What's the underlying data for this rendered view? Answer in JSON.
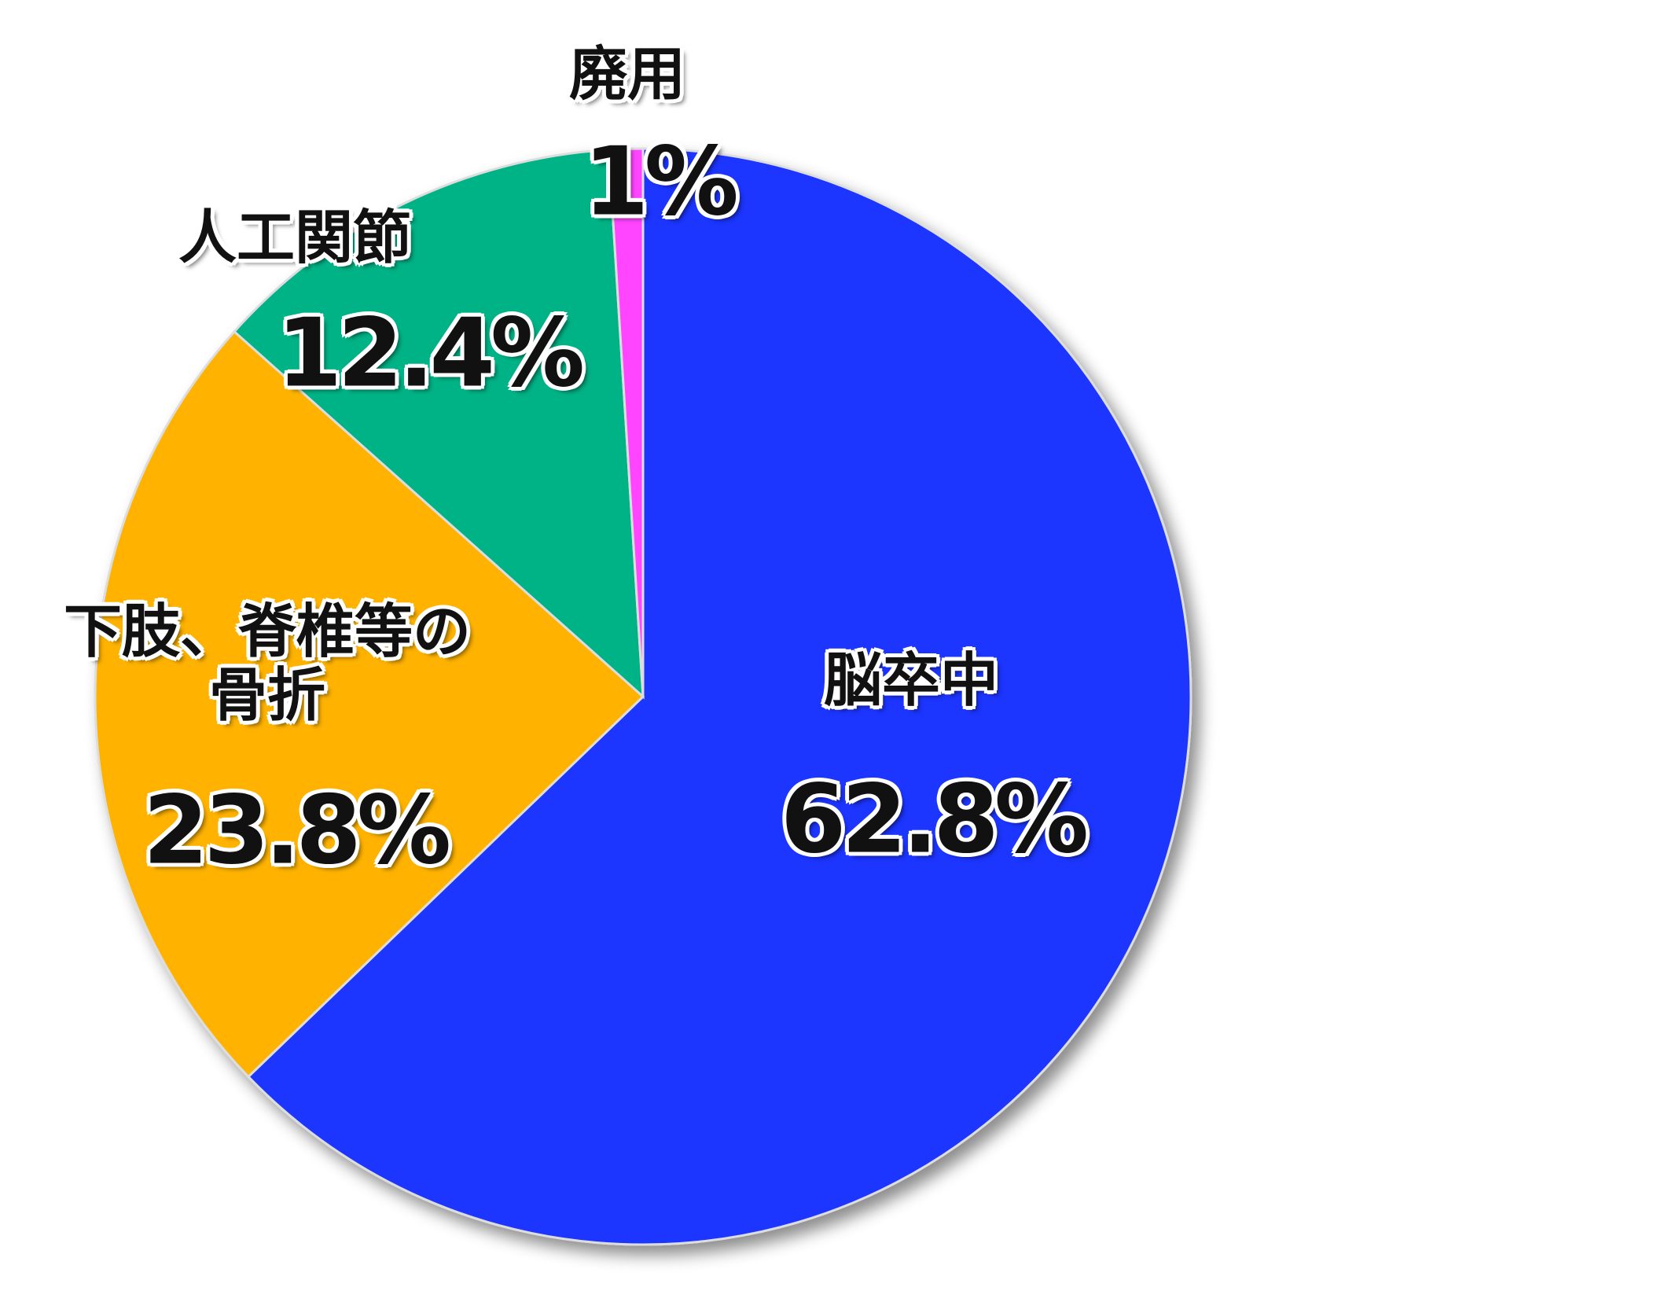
{
  "chart_data": {
    "type": "pie",
    "categories": [
      "脳卒中",
      "下肢、脊椎等の\n骨折",
      "人工関節",
      "廃用"
    ],
    "values": [
      62.8,
      23.8,
      12.4,
      1
    ],
    "value_labels": [
      "62.8%",
      "23.8%",
      "12.4%",
      "1%"
    ],
    "colors": [
      "#1a35ff",
      "#ffb300",
      "#00b386",
      "#ff44ff"
    ]
  }
}
